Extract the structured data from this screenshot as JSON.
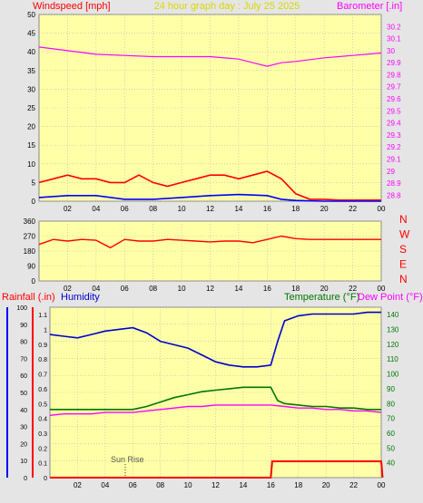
{
  "colors": {
    "page_bg": "#e5e5e5",
    "plot_bg": "#ffffa8",
    "grid": "#b8b8b8",
    "wind": "#ff0000",
    "wind_avg": "#0000ff",
    "barometer": "#ff00ff",
    "direction": "#ff0000",
    "humidity": "#0000cc",
    "temperature": "#007700",
    "dew_point": "#ff00ff",
    "rainfall": "#ff0000",
    "title": "#d8d800"
  },
  "header": {
    "windspeed_label": "Windspeed [mph]",
    "title": "24 hour graph day : July 25 2025",
    "barometer_label": "Barometer [.in]"
  },
  "direction_labels": [
    "N",
    "W",
    "S",
    "E",
    "N"
  ],
  "bottom_header": {
    "rainfall_label": "Rainfall (.in)",
    "humidity_label": "Humidity",
    "temperature_label": "Temperature (°F)",
    "dewpoint_label": "Dew Point (°F)"
  },
  "annotations": {
    "sunrise": "Sun Rise"
  },
  "chart_data": [
    {
      "type": "line",
      "name": "wind-barometer",
      "x_tick_labels": [
        "02",
        "04",
        "06",
        "08",
        "10",
        "12",
        "14",
        "16",
        "18",
        "20",
        "22",
        "00"
      ],
      "left_axis": {
        "ylim": [
          0,
          50
        ],
        "ticks": [
          0,
          5,
          10,
          15,
          20,
          25,
          30,
          35,
          40,
          45,
          50
        ]
      },
      "right_axis": {
        "ylim": [
          28.75,
          30.3
        ],
        "ticks": [
          "28.8",
          "28.9",
          "29",
          "29.1",
          "29.2",
          "29.3",
          "29.4",
          "29.5",
          "29.6",
          "29.7",
          "29.8",
          "29.9",
          "30",
          "30.1",
          "30.2"
        ]
      },
      "series": [
        {
          "name": "Windspeed",
          "axis": "left",
          "x": [
            0,
            1,
            2,
            3,
            4,
            5,
            6,
            7,
            8,
            9,
            10,
            11,
            12,
            13,
            14,
            15,
            16,
            17,
            18,
            19,
            20,
            21,
            22,
            23,
            24
          ],
          "values": [
            5,
            6,
            7,
            6,
            6,
            5,
            5,
            7,
            5,
            4,
            5,
            6,
            7,
            7,
            6,
            7,
            8,
            6,
            2,
            0.5,
            0.5,
            0.3,
            0.3,
            0.3,
            0.3
          ]
        },
        {
          "axis": "left",
          "x": [
            0,
            2,
            4,
            6,
            8,
            10,
            12,
            14,
            16,
            17,
            18,
            20,
            22,
            24
          ],
          "values": [
            1,
            1.5,
            1.5,
            0.5,
            0.5,
            1,
            1.5,
            1.8,
            1.5,
            0.5,
            0.2,
            0,
            0,
            0
          ]
        },
        {
          "name": "Barometer",
          "axis": "right",
          "x": [
            0,
            2,
            4,
            6,
            8,
            10,
            12,
            14,
            15,
            16,
            17,
            18,
            20,
            22,
            24
          ],
          "values": [
            30.03,
            30.0,
            29.97,
            29.96,
            29.95,
            29.95,
            29.95,
            29.93,
            29.9,
            29.87,
            29.9,
            29.91,
            29.94,
            29.96,
            29.98
          ]
        }
      ]
    },
    {
      "type": "line",
      "name": "wind-direction",
      "x_tick_labels": [
        "02",
        "04",
        "06",
        "08",
        "10",
        "12",
        "14",
        "16",
        "18",
        "20",
        "22",
        "00"
      ],
      "ylim": [
        0,
        360
      ],
      "ticks": [
        0,
        90,
        180,
        270,
        360
      ],
      "series": [
        {
          "x": [
            0,
            1,
            2,
            3,
            4,
            5,
            6,
            7,
            8,
            9,
            10,
            11,
            12,
            13,
            14,
            15,
            16,
            17,
            18,
            19,
            20,
            21,
            22,
            23,
            24
          ],
          "values": [
            220,
            250,
            240,
            250,
            245,
            200,
            250,
            240,
            240,
            250,
            245,
            240,
            235,
            240,
            240,
            230,
            250,
            270,
            255,
            250,
            250,
            250,
            250,
            250,
            250
          ]
        }
      ]
    },
    {
      "type": "line",
      "name": "temp-humidity-rain",
      "x_tick_labels": [
        "02",
        "04",
        "06",
        "08",
        "10",
        "12",
        "14",
        "16",
        "18",
        "20",
        "22",
        "00"
      ],
      "left_axis_humidity": {
        "ylim": [
          0,
          100
        ],
        "ticks": [
          0,
          10,
          20,
          30,
          40,
          50,
          60,
          70,
          80,
          90,
          100
        ]
      },
      "left_axis_rain": {
        "ylim": [
          0,
          1.15
        ],
        "ticks": [
          "0",
          "0.1",
          "0.2",
          "0.3",
          "0.4",
          "0.5",
          "0.6",
          "0.7",
          "0.8",
          "0.9",
          "1",
          "1.1"
        ]
      },
      "right_axis": {
        "ylim": [
          30,
          145
        ],
        "ticks": [
          40,
          50,
          60,
          70,
          80,
          90,
          100,
          110,
          120,
          130,
          140
        ]
      },
      "series": [
        {
          "name": "Humidity",
          "axis": "humidity",
          "x": [
            0,
            1,
            2,
            3,
            4,
            5,
            6,
            7,
            8,
            9,
            10,
            11,
            12,
            13,
            14,
            15,
            16,
            16.5,
            17,
            18,
            19,
            20,
            21,
            22,
            23,
            24
          ],
          "values": [
            84,
            83,
            82,
            84,
            86,
            87,
            88,
            85,
            80,
            78,
            76,
            72,
            68,
            66,
            65,
            65,
            66,
            80,
            92,
            95,
            96,
            96,
            96,
            96,
            97,
            97
          ]
        },
        {
          "name": "Temperature",
          "axis": "temp",
          "x": [
            0,
            1,
            2,
            3,
            4,
            5,
            6,
            7,
            8,
            9,
            10,
            11,
            12,
            13,
            14,
            15,
            16,
            16.5,
            17,
            18,
            19,
            20,
            21,
            22,
            23,
            24
          ],
          "values": [
            76,
            76,
            76,
            76,
            76,
            76,
            76,
            78,
            81,
            84,
            86,
            88,
            89,
            90,
            91,
            91,
            91,
            82,
            80,
            79,
            78,
            78,
            77,
            77,
            76,
            76
          ]
        },
        {
          "name": "Dew Point",
          "axis": "temp",
          "x": [
            0,
            1,
            2,
            3,
            4,
            5,
            6,
            7,
            8,
            9,
            10,
            11,
            12,
            13,
            14,
            15,
            16,
            17,
            18,
            19,
            20,
            21,
            22,
            23,
            24
          ],
          "values": [
            72,
            73,
            73,
            73,
            74,
            74,
            74,
            75,
            76,
            77,
            78,
            78,
            79,
            79,
            79,
            79,
            79,
            78,
            77,
            77,
            76,
            76,
            75,
            75,
            74
          ]
        },
        {
          "name": "Rainfall",
          "axis": "rain",
          "x": [
            0,
            16,
            16.1,
            24,
            24.1
          ],
          "values": [
            0,
            0,
            0.11,
            0.11,
            0
          ]
        }
      ]
    }
  ]
}
